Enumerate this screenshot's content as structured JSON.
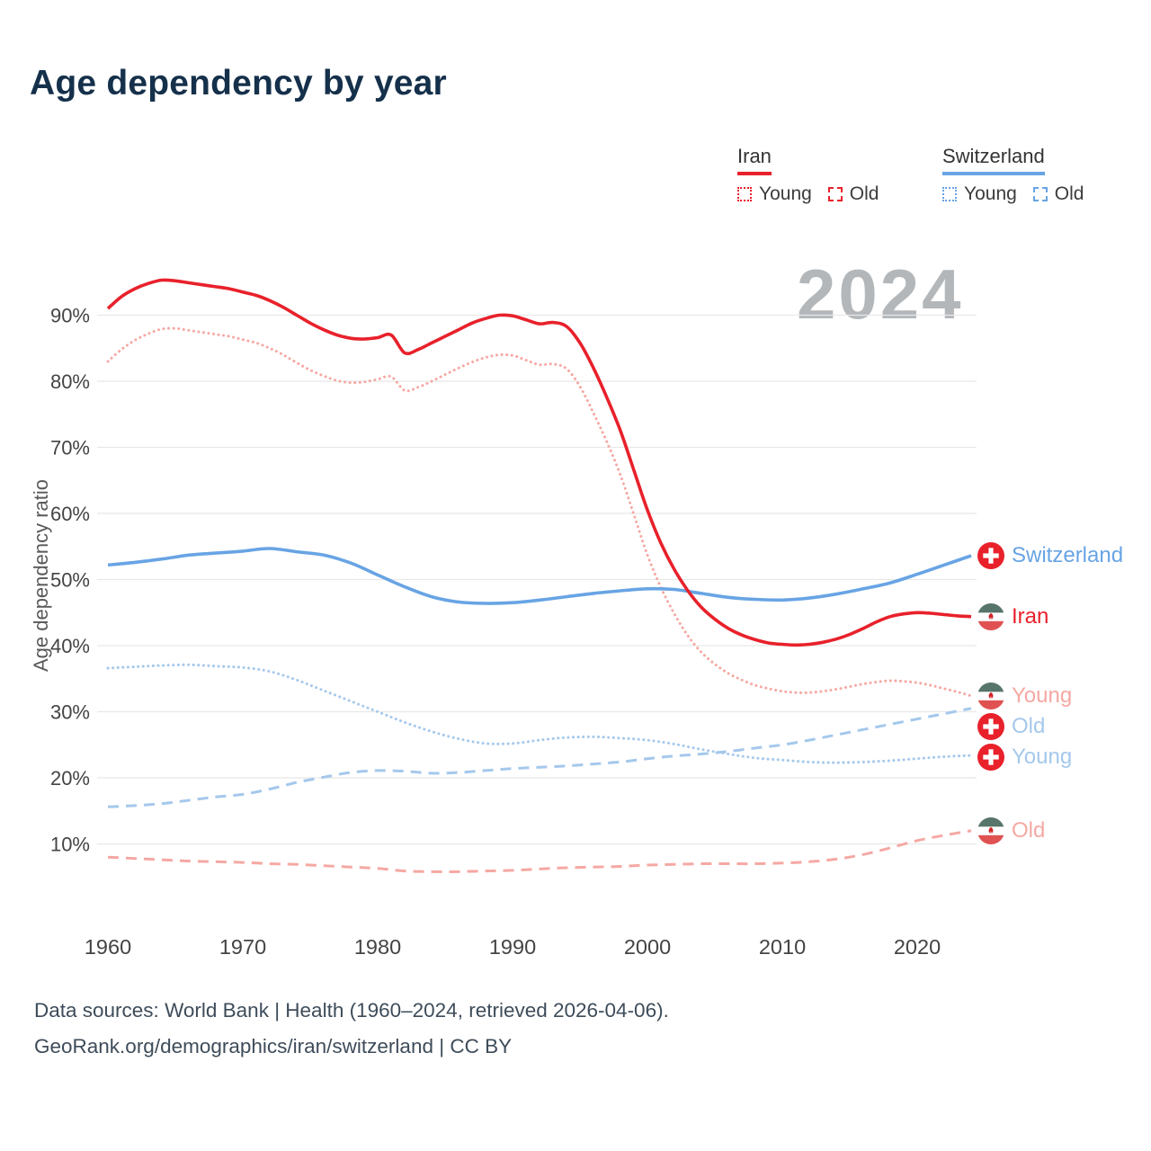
{
  "title": "Age dependency by year",
  "watermark": "2024",
  "legend": {
    "iran": {
      "name": "Iran",
      "young": "Young",
      "old": "Old"
    },
    "switzerland": {
      "name": "Switzerland",
      "young": "Young",
      "old": "Old"
    }
  },
  "footer": {
    "line1": "Data sources: World Bank | Health (1960–2024, retrieved 2026-04-06).",
    "line2": "GeoRank.org/demographics/iran/switzerland | CC BY"
  },
  "colors": {
    "iran": "#e8212b",
    "iran_light": "#f5a8a3",
    "swiss": "#68a4e4",
    "swiss_light": "#a5c8ec",
    "grid": "#e8e8e8",
    "tick_text": "#444444",
    "axis_label": "#595959",
    "watermark": "#b4b7ba",
    "title": "#15304b",
    "footer": "#3e4c5a"
  },
  "chart_data": {
    "type": "line",
    "title": "Age dependency by year",
    "xlabel": "",
    "ylabel": "Age dependency ratio",
    "xlim": [
      1958,
      2025
    ],
    "ylim": [
      0,
      100
    ],
    "x_ticks": [
      1960,
      1970,
      1980,
      1990,
      2000,
      2010,
      2020
    ],
    "y_ticks": [
      10,
      20,
      30,
      40,
      50,
      60,
      70,
      80,
      90
    ],
    "y_tick_suffix": "%",
    "grid": "horizontal",
    "legend_position": "top-right",
    "series": [
      {
        "id": "iran_old",
        "name": "Iran Old",
        "country": "iran",
        "component": "old",
        "style": "dashed",
        "color_key": "iran_light",
        "label_color_key": "iran_light",
        "end_label": "Old",
        "x_start": 1960,
        "x_step": 2,
        "values": [
          8,
          7.8,
          7.6,
          7.4,
          7.3,
          7.2,
          7,
          6.9,
          6.7,
          6.5,
          6.3,
          5.9,
          5.8,
          5.8,
          5.9,
          6,
          6.2,
          6.4,
          6.5,
          6.6,
          6.8,
          6.9,
          7,
          7,
          7,
          7.1,
          7.3,
          7.7,
          8.4,
          9.4,
          10.5,
          11.3,
          12
        ]
      },
      {
        "id": "swiss_old",
        "name": "Switzerland Old",
        "country": "switzerland",
        "component": "old",
        "style": "dashed",
        "color_key": "swiss_light",
        "label_color_key": "swiss_light",
        "end_label": "Old",
        "x_start": 1960,
        "x_step": 2,
        "values": [
          15.6,
          15.8,
          16.1,
          16.6,
          17.1,
          17.5,
          18.3,
          19.3,
          20.1,
          20.8,
          21.1,
          21,
          20.7,
          20.8,
          21.1,
          21.4,
          21.6,
          21.8,
          22.1,
          22.4,
          22.9,
          23.3,
          23.6,
          24,
          24.5,
          25,
          25.7,
          26.5,
          27.3,
          28.1,
          28.9,
          29.7,
          30.5
        ]
      },
      {
        "id": "swiss_young",
        "name": "Switzerland Young",
        "country": "switzerland",
        "component": "young",
        "style": "dotted",
        "color_key": "swiss_light",
        "label_color_key": "swiss_light",
        "end_label": "Young",
        "x_start": 1960,
        "x_step": 2,
        "values": [
          36.6,
          36.8,
          37,
          37.1,
          36.9,
          36.7,
          36.1,
          34.8,
          33.2,
          31.6,
          30,
          28.4,
          27,
          25.9,
          25.2,
          25.2,
          25.7,
          26.1,
          26.2,
          26,
          25.7,
          25.1,
          24.3,
          23.6,
          23,
          22.7,
          22.4,
          22.3,
          22.4,
          22.6,
          22.9,
          23.2,
          23.4
        ]
      },
      {
        "id": "iran_young",
        "name": "Iran Young",
        "country": "iran",
        "component": "young",
        "style": "dotted",
        "color_key": "iran_light",
        "label_color_key": "iran_light",
        "end_label": "Young",
        "x_start": 1960,
        "x_step": 1,
        "values": [
          83,
          84.8,
          86.2,
          87.2,
          87.9,
          88,
          87.7,
          87.4,
          87.1,
          86.8,
          86.3,
          85.8,
          85,
          84,
          82.8,
          81.7,
          80.8,
          80.1,
          79.8,
          79.9,
          80.3,
          80.7,
          78.6,
          79.1,
          80,
          81,
          82,
          82.9,
          83.6,
          84,
          83.9,
          83.2,
          82.5,
          82.6,
          81.9,
          79.2,
          75.2,
          70.8,
          65.8,
          59.8,
          53.7,
          48.8,
          44.8,
          41.5,
          39,
          37.2,
          35.8,
          34.8,
          34,
          33.5,
          33.1,
          32.9,
          32.9,
          33.1,
          33.4,
          33.8,
          34.2,
          34.5,
          34.7,
          34.6,
          34.4,
          34,
          33.5,
          33,
          32.4
        ]
      },
      {
        "id": "swiss_total",
        "name": "Switzerland",
        "country": "switzerland",
        "component": "total",
        "style": "solid",
        "color_key": "swiss",
        "label_color_key": "swiss",
        "end_label": "Switzerland",
        "x_start": 1960,
        "x_step": 2,
        "values": [
          52.2,
          52.6,
          53.1,
          53.7,
          54,
          54.3,
          54.7,
          54.2,
          53.7,
          52.5,
          50.7,
          48.9,
          47.4,
          46.6,
          46.4,
          46.5,
          46.9,
          47.4,
          47.9,
          48.3,
          48.6,
          48.5,
          47.9,
          47.3,
          47,
          46.9,
          47.2,
          47.8,
          48.6,
          49.5,
          50.8,
          52.2,
          53.6
        ]
      },
      {
        "id": "iran_total",
        "name": "Iran",
        "country": "iran",
        "component": "total",
        "style": "solid",
        "color_key": "iran",
        "label_color_key": "iran",
        "end_label": "Iran",
        "x_start": 1960,
        "x_step": 1,
        "values": [
          91,
          92.8,
          94,
          94.8,
          95.3,
          95.2,
          94.9,
          94.6,
          94.3,
          94,
          93.5,
          93,
          92.2,
          91.2,
          90,
          88.8,
          87.8,
          87,
          86.5,
          86.4,
          86.6,
          87,
          84.3,
          84.8,
          85.8,
          86.8,
          87.8,
          88.8,
          89.5,
          90,
          89.9,
          89.3,
          88.7,
          88.9,
          88.3,
          85.8,
          82,
          77.5,
          72.5,
          66.5,
          60.5,
          55.5,
          51.5,
          48.3,
          45.8,
          44,
          42.6,
          41.6,
          40.9,
          40.4,
          40.2,
          40.1,
          40.2,
          40.5,
          41,
          41.7,
          42.6,
          43.6,
          44.4,
          44.8,
          45,
          44.9,
          44.7,
          44.5,
          44.4
        ]
      }
    ]
  }
}
